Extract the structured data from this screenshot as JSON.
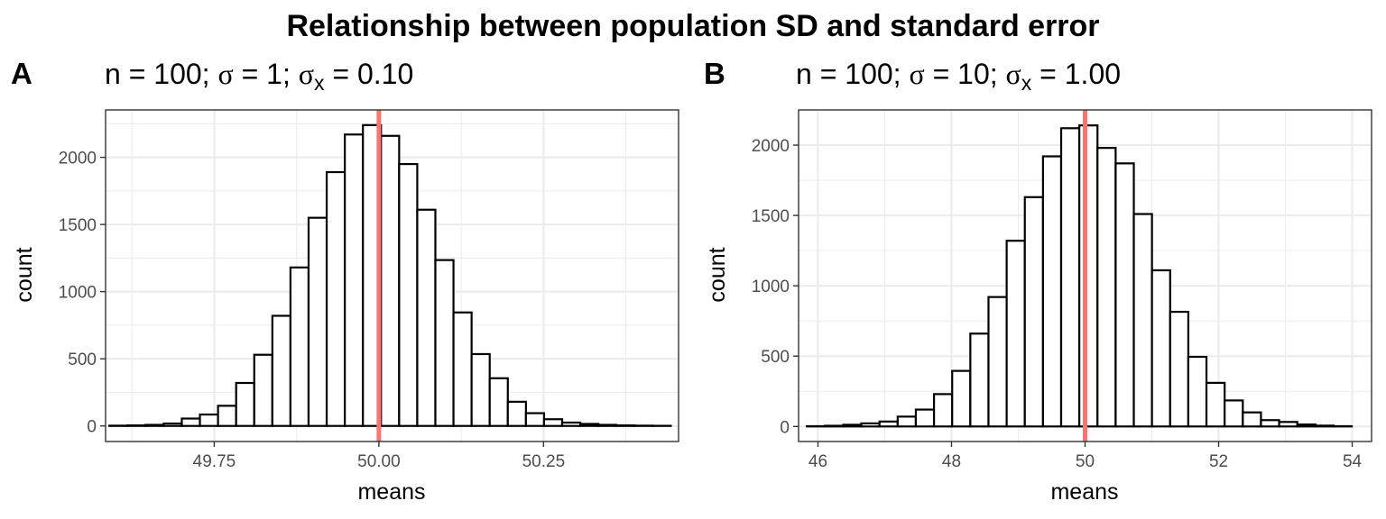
{
  "title": "Relationship between population SD and standard error",
  "colors": {
    "bar_fill": "#ffffff",
    "bar_outline": "#000000",
    "mean_line": "#f8766d",
    "grid": "#ebebeb",
    "tick_text": "#4d4d4d"
  },
  "chart_data": [
    {
      "type": "bar",
      "panel": "A",
      "subtitle": {
        "pre": "n = 100; ",
        "s1": "σ",
        "mid": " = 1; ",
        "s2": "σ",
        "sub": "x",
        "post": " = 0.10"
      },
      "xlabel": "means",
      "ylabel": "count",
      "grid": true,
      "xlim": [
        49.585,
        50.455
      ],
      "ylim": [
        -116,
        2353
      ],
      "x_ticks": [
        49.75,
        50.0,
        50.25
      ],
      "x_tick_labels": [
        "49.75",
        "50.00",
        "50.25"
      ],
      "y_ticks": [
        0,
        500,
        1000,
        1500,
        2000
      ],
      "y_tick_labels": [
        "0",
        "500",
        "1000",
        "1500",
        "2000"
      ],
      "bin_width": 0.0275,
      "bin_centers": [
        49.6045,
        49.632,
        49.6595,
        49.687,
        49.7145,
        49.742,
        49.7695,
        49.797,
        49.8245,
        49.852,
        49.8795,
        49.907,
        49.9345,
        49.962,
        49.9895,
        50.017,
        50.0445,
        50.072,
        50.0995,
        50.127,
        50.1545,
        50.182,
        50.2095,
        50.237,
        50.2645,
        50.292,
        50.3195,
        50.347,
        50.3745,
        50.402,
        50.4295
      ],
      "values": [
        2,
        4,
        8,
        18,
        55,
        85,
        150,
        320,
        530,
        820,
        1180,
        1550,
        1890,
        2170,
        2240,
        2160,
        1950,
        1610,
        1235,
        845,
        535,
        355,
        180,
        95,
        50,
        25,
        15,
        8,
        4,
        2,
        1
      ],
      "vline": 50.0
    },
    {
      "type": "bar",
      "panel": "B",
      "subtitle": {
        "pre": "n = 100; ",
        "s1": "σ",
        "mid": " = 10; ",
        "s2": "σ",
        "sub": "x",
        "post": " = 1.00"
      },
      "xlabel": "means",
      "ylabel": "count",
      "grid": true,
      "xlim": [
        45.71,
        54.29
      ],
      "ylim": [
        -107,
        2250
      ],
      "x_ticks": [
        46,
        48,
        50,
        52,
        54
      ],
      "x_tick_labels": [
        "46",
        "48",
        "50",
        "52",
        "54"
      ],
      "y_ticks": [
        0,
        500,
        1000,
        1500,
        2000
      ],
      "y_tick_labels": [
        "0",
        "500",
        "1000",
        "1500",
        "2000"
      ],
      "bin_width": 0.272,
      "bin_centers": [
        45.97,
        46.242,
        46.514,
        46.786,
        47.058,
        47.33,
        47.602,
        47.874,
        48.146,
        48.418,
        48.69,
        48.962,
        49.234,
        49.506,
        49.778,
        50.05,
        50.322,
        50.594,
        50.866,
        51.138,
        51.41,
        51.682,
        51.954,
        52.226,
        52.498,
        52.77,
        53.042,
        53.314,
        53.586,
        53.858
      ],
      "values": [
        2,
        5,
        12,
        22,
        35,
        70,
        120,
        230,
        395,
        660,
        920,
        1320,
        1630,
        1920,
        2120,
        2140,
        1980,
        1870,
        1510,
        1110,
        815,
        495,
        310,
        185,
        100,
        45,
        32,
        14,
        6,
        2
      ],
      "vline": 50.0
    }
  ]
}
